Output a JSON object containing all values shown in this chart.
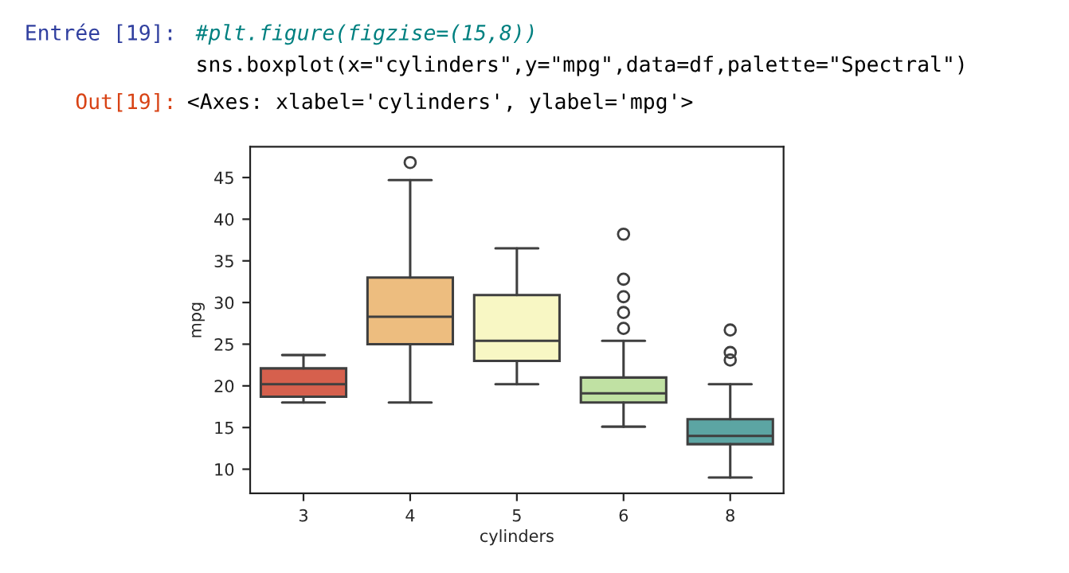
{
  "chart_data": {
    "type": "box",
    "xlabel": "cylinders",
    "ylabel": "mpg",
    "categories": [
      "3",
      "4",
      "5",
      "6",
      "8"
    ],
    "colors": [
      "#d6604d",
      "#edbd7f",
      "#f8f7c4",
      "#c0e1a3",
      "#5ca5a3"
    ],
    "boxes": [
      {
        "low": 18,
        "q1": 18.7,
        "median": 20.2,
        "q3": 22.1,
        "high": 23.7
      },
      {
        "low": 18,
        "q1": 25,
        "median": 28.3,
        "q3": 33,
        "high": 44.7,
        "outliers": [
          46.8
        ]
      },
      {
        "low": 20.2,
        "q1": 23,
        "median": 25.4,
        "q3": 30.9,
        "high": 36.5
      },
      {
        "low": 15.1,
        "q1": 18,
        "median": 19.1,
        "q3": 21,
        "high": 25.4,
        "outliers": [
          38.2,
          32.8,
          30.7,
          28.8,
          26.9
        ]
      },
      {
        "low": 9,
        "q1": 13,
        "median": 14,
        "q3": 16,
        "high": 20.2,
        "outliers": [
          26.7,
          24,
          23.1
        ]
      }
    ],
    "ylim": [
      7.1,
      48.7
    ],
    "yticks": [
      10,
      15,
      20,
      25,
      30,
      35,
      40,
      45
    ],
    "grid": false,
    "annotations": [
      "Entrée [19]:",
      "#plt.figure(figzise=(15,8))",
      "sns.boxplot(x=\"cylinders\",y=\"mpg\",data=df,palette=\"Spectral\")",
      "Out[19]:",
      "<Axes: xlabel='cylinders', ylabel='mpg'>"
    ]
  }
}
